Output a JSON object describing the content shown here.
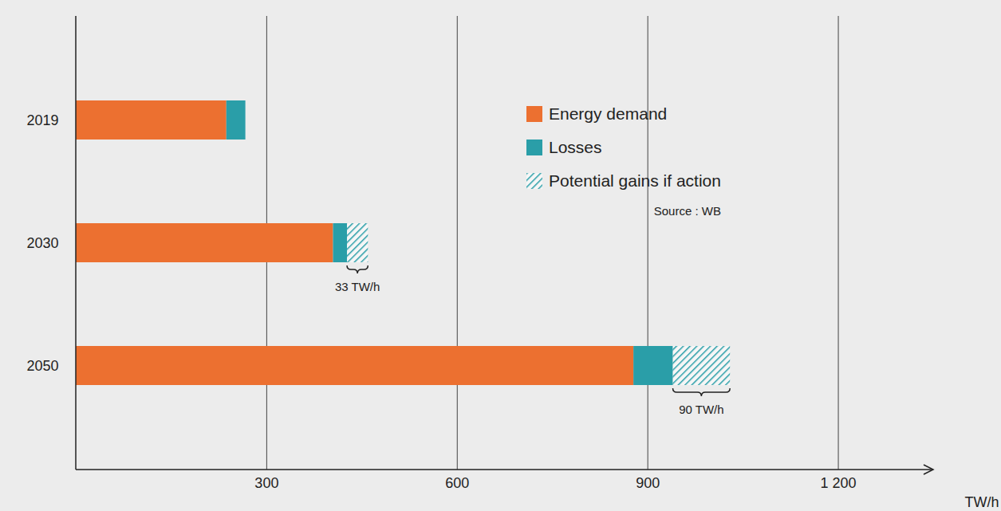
{
  "chart_data": {
    "type": "bar",
    "orientation": "horizontal",
    "stacked": true,
    "categories": [
      "2019",
      "2030",
      "2050"
    ],
    "series": [
      {
        "name": "Energy demand",
        "color": "#ec7030",
        "values": [
          237,
          405,
          878
        ]
      },
      {
        "name": "Losses",
        "color": "#2a9ea8",
        "values": [
          30,
          22,
          62
        ]
      },
      {
        "name": "Potential gains if action",
        "color": "#2a9ea8",
        "line_style": "hatched",
        "values": [
          null,
          33,
          90
        ],
        "data_labels": true,
        "value_labels": [
          null,
          "33 TW/h",
          "90 TW/h"
        ]
      }
    ],
    "xlabel": "TW/h",
    "xlim": [
      0,
      1350
    ],
    "xticks": [
      300,
      600,
      900,
      {
        "value": 1200,
        "label": "1 200"
      }
    ],
    "grid": true,
    "legend": "top-right",
    "source": "Source : WB"
  }
}
